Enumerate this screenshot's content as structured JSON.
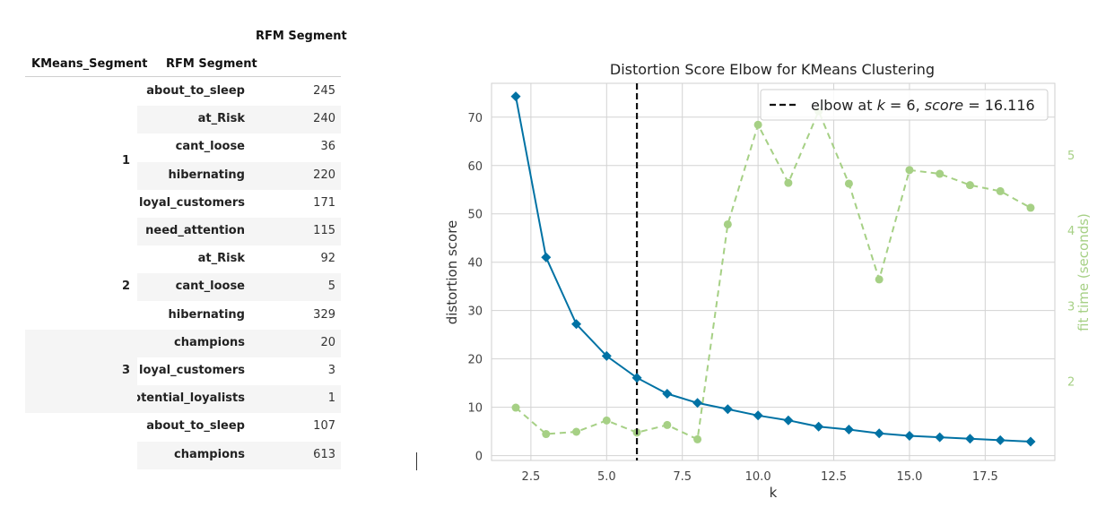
{
  "table": {
    "col_header_top": "RFM Segment",
    "index_header_1": "KMeans_Segment",
    "index_header_2": "RFM Segment",
    "groups": [
      {
        "kmeans": "1",
        "rows": [
          {
            "segment": "about_to_sleep",
            "count": "245"
          },
          {
            "segment": "at_Risk",
            "count": "240"
          },
          {
            "segment": "cant_loose",
            "count": "36"
          },
          {
            "segment": "hibernating",
            "count": "220"
          },
          {
            "segment": "loyal_customers",
            "count": "171"
          },
          {
            "segment": "need_attention",
            "count": "115"
          }
        ]
      },
      {
        "kmeans": "2",
        "rows": [
          {
            "segment": "at_Risk",
            "count": "92"
          },
          {
            "segment": "cant_loose",
            "count": "5"
          },
          {
            "segment": "hibernating",
            "count": "329"
          }
        ]
      },
      {
        "kmeans": "3",
        "rows": [
          {
            "segment": "champions",
            "count": "20"
          },
          {
            "segment": "loyal_customers",
            "count": "3"
          },
          {
            "segment": "potential_loyalists",
            "count": "1"
          }
        ]
      },
      {
        "kmeans": "",
        "rows": [
          {
            "segment": "about_to_sleep",
            "count": "107"
          },
          {
            "segment": "champions",
            "count": "613"
          }
        ]
      }
    ]
  },
  "chart_data": {
    "type": "line",
    "title": "Distortion Score Elbow for KMeans Clustering",
    "xlabel": "k",
    "ylabel": "distortion score",
    "y2label": "fit time (seconds)",
    "xlim": [
      1.2,
      19.8
    ],
    "ylim": [
      -1,
      77
    ],
    "y2lim": [
      0.95,
      5.95
    ],
    "x_ticks": [
      "2.5",
      "5.0",
      "7.5",
      "10.0",
      "12.5",
      "15.0",
      "17.5"
    ],
    "y_ticks": [
      "0",
      "10",
      "20",
      "30",
      "40",
      "50",
      "60",
      "70"
    ],
    "y2_ticks": [
      "2",
      "3",
      "4",
      "5"
    ],
    "grid": true,
    "elbow": {
      "k": 6,
      "label_prefix": "elbow at ",
      "label_k": "k",
      "label_eq1": " = 6, ",
      "label_score": "score",
      "label_eq2": " = 16.116"
    },
    "series": [
      {
        "name": "distortion score",
        "x": [
          2,
          3,
          4,
          5,
          6,
          7,
          8,
          9,
          10,
          11,
          12,
          13,
          14,
          15,
          16,
          17,
          18,
          19
        ],
        "values": [
          74.3,
          41.0,
          27.2,
          20.6,
          16.1,
          12.8,
          10.9,
          9.6,
          8.3,
          7.3,
          6.0,
          5.4,
          4.6,
          4.1,
          3.8,
          3.5,
          3.2,
          2.9
        ],
        "color": "#0072a4"
      },
      {
        "name": "fit time (seconds)",
        "x": [
          2,
          3,
          4,
          5,
          6,
          7,
          8,
          9,
          10,
          11,
          12,
          13,
          14,
          15,
          16,
          17,
          18,
          19
        ],
        "values": [
          1.65,
          1.3,
          1.33,
          1.48,
          1.32,
          1.42,
          1.23,
          4.08,
          5.4,
          4.63,
          5.58,
          4.62,
          3.35,
          4.8,
          4.75,
          4.6,
          4.52,
          4.3
        ],
        "color": "#a6d085"
      }
    ],
    "legend_position": "top-right"
  }
}
